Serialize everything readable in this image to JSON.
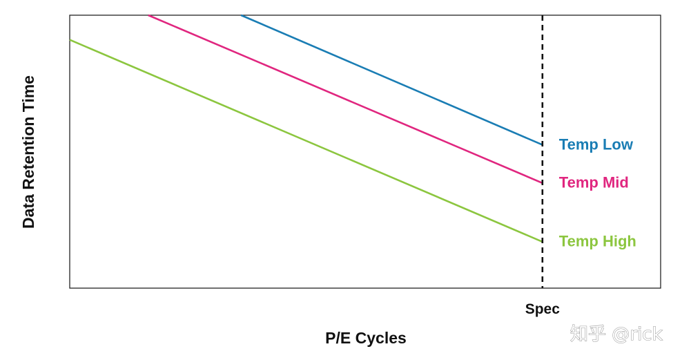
{
  "chart_data": {
    "type": "line",
    "title": "",
    "xlabel": "P/E Cycles",
    "ylabel": "Data Retention Time",
    "xlim": [
      0,
      100
    ],
    "ylim": [
      0,
      100
    ],
    "x_ticks_visible": false,
    "y_ticks_visible": false,
    "grid": false,
    "spec": {
      "label": "Spec",
      "x": 80
    },
    "series": [
      {
        "name": "Temp Low",
        "color": "#1a7db4",
        "x": [
          29,
          80
        ],
        "y": [
          100,
          52.5
        ]
      },
      {
        "name": "Temp Mid",
        "color": "#e0267f",
        "x": [
          13.3,
          80
        ],
        "y": [
          100,
          38.5
        ]
      },
      {
        "name": "Temp High",
        "color": "#8cc63f",
        "x": [
          0,
          80
        ],
        "y": [
          91,
          17
        ]
      }
    ]
  },
  "watermark": "知乎 @rick"
}
